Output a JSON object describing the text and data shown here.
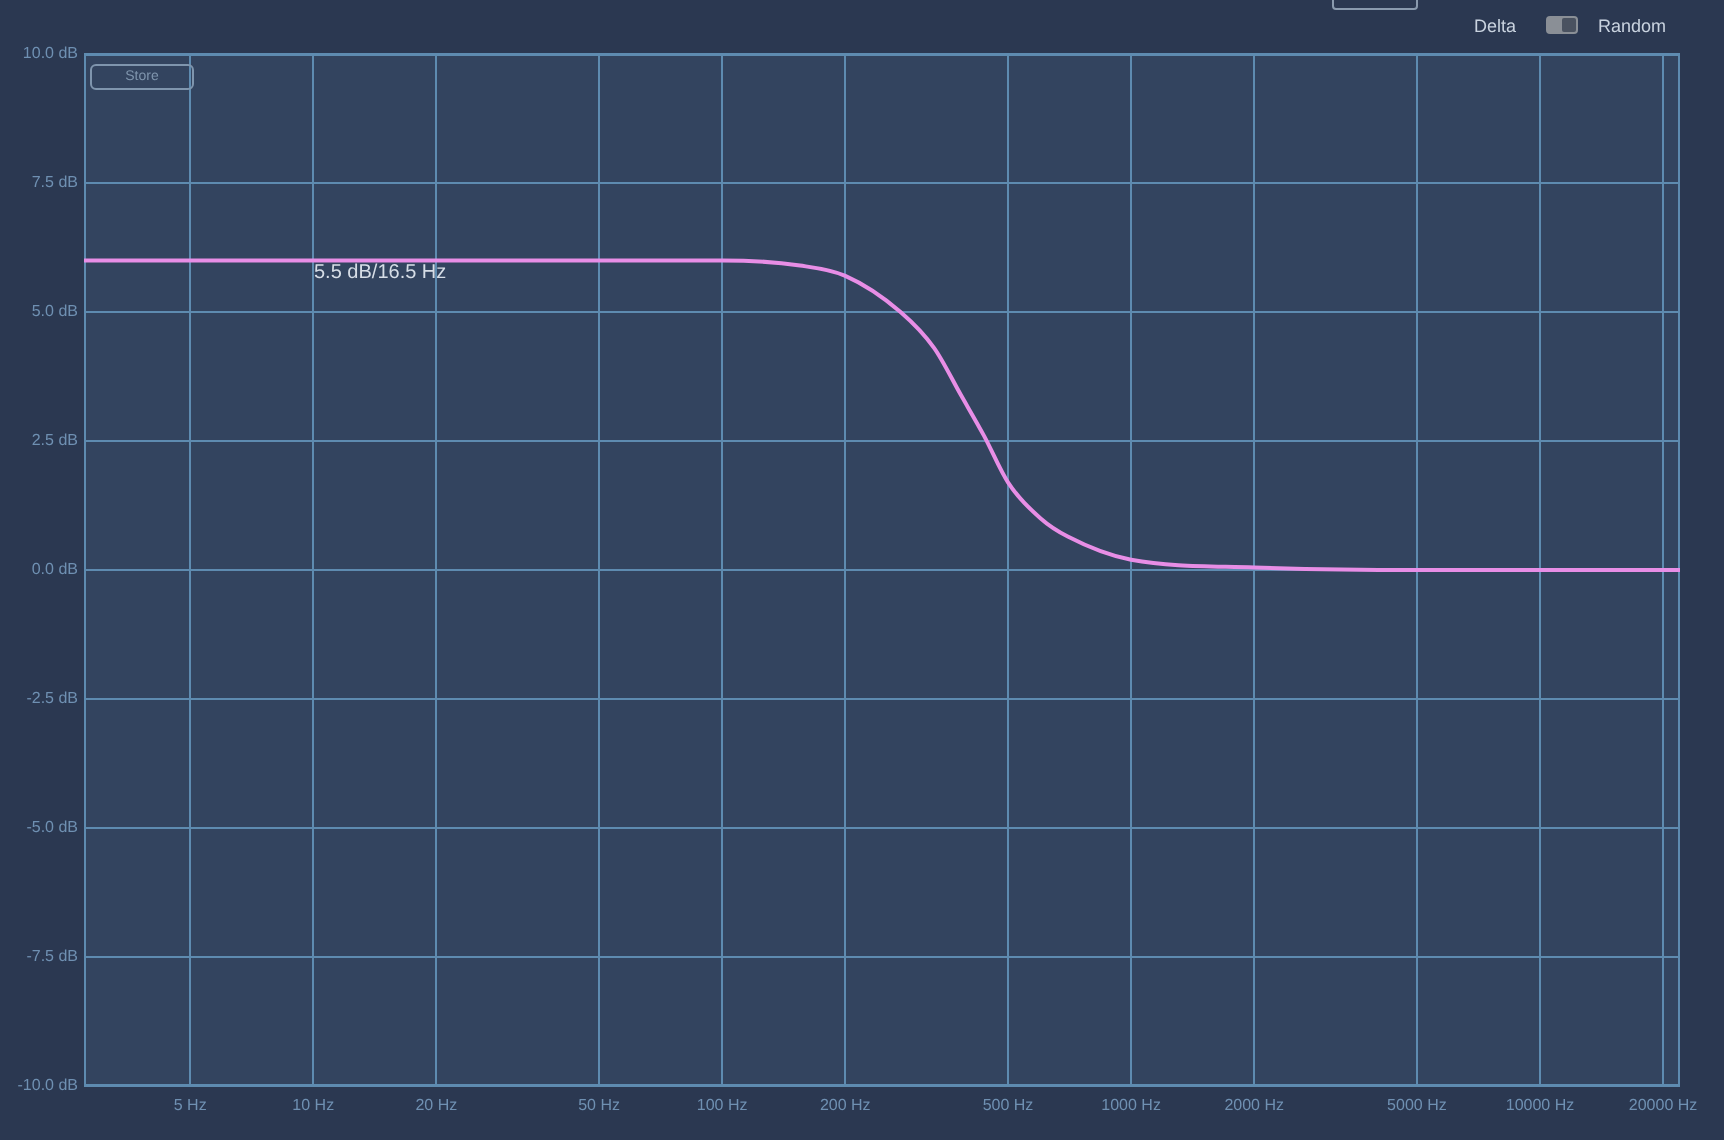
{
  "chart_data": {
    "type": "line",
    "xlabel": null,
    "x": [
      2.75,
      10,
      50,
      100,
      155,
      200,
      273,
      330,
      383,
      437,
      500,
      601,
      700,
      1000,
      2000,
      5000,
      22000
    ],
    "series": [
      {
        "color": "#e88ee6",
        "values": [
          6.0,
          6.0,
          6.0,
          6.0,
          5.9,
          5.7,
          5.0,
          4.3,
          3.4,
          2.6,
          1.7,
          1.0,
          0.65,
          0.2,
          0.05,
          0,
          0
        ]
      }
    ],
    "log": "x",
    "xlim": [
      2.75,
      22000
    ],
    "xticks": [
      {
        "value": 5,
        "label": "5 Hz"
      },
      {
        "value": 10,
        "label": "10 Hz"
      },
      {
        "value": 20,
        "label": "20 Hz"
      },
      {
        "value": 50,
        "label": "50 Hz"
      },
      {
        "value": 100,
        "label": "100 Hz"
      },
      {
        "value": 200,
        "label": "200 Hz"
      },
      {
        "value": 500,
        "label": "500 Hz"
      },
      {
        "value": 1000,
        "label": "1000 Hz"
      },
      {
        "value": 2000,
        "label": "2000 Hz"
      },
      {
        "value": 5000,
        "label": "5000 Hz"
      },
      {
        "value": 10000,
        "label": "10000 Hz"
      },
      {
        "value": 20000,
        "label": "20000 Hz"
      }
    ],
    "ylim": [
      -10,
      10
    ],
    "yticks": [
      {
        "value": -10,
        "label": "-10.0 dB"
      },
      {
        "value": -7.5,
        "label": "-7.5 dB"
      },
      {
        "value": -5,
        "label": "-5.0 dB"
      },
      {
        "value": -2.5,
        "label": "-2.5 dB"
      },
      {
        "value": 0,
        "label": "0.0 dB"
      },
      {
        "value": 2.5,
        "label": "2.5 dB"
      },
      {
        "value": 5,
        "label": "5.0 dB"
      },
      {
        "value": 7.5,
        "label": "7.5 dB"
      },
      {
        "value": 10,
        "label": "10.0 dB"
      }
    ],
    "grid": true,
    "legend": false,
    "marker": "none",
    "line_style": "solid",
    "annotations": [
      "5.5 dB/16.5 Hz",
      "Store",
      "Delta",
      "Random"
    ]
  }
}
